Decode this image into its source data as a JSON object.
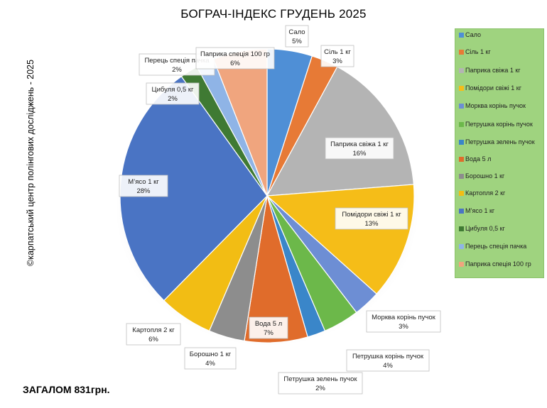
{
  "header": {
    "title": "БОГРАЧ-ІНДЕКС ГРУДЕНЬ 2025",
    "credit": "©карпатський центр полінгових досліджень - 2025",
    "total": "ЗАГАЛОМ 831грн."
  },
  "chart_data": {
    "type": "pie",
    "title": "БОГРАЧ-ІНДЕКС ГРУДЕНЬ 2025",
    "legend_position": "right",
    "slices": [
      {
        "name": "Сало",
        "value": 5,
        "label": "5%",
        "color": "#4f8fd6"
      },
      {
        "name": "Сіль 1 кг",
        "value": 3,
        "label": "3%",
        "color": "#e77a36"
      },
      {
        "name": "Паприка свіжа 1 кг",
        "value": 16,
        "label": "16%",
        "color": "#b4b4b4"
      },
      {
        "name": "Помідори свіжі 1 кг",
        "value": 13,
        "label": "13%",
        "color": "#f5bd18"
      },
      {
        "name": "Морква корінь пучок",
        "value": 3,
        "label": "3%",
        "color": "#6d8ed4"
      },
      {
        "name": "Петрушка корінь пучок",
        "value": 4,
        "label": "4%",
        "color": "#6cb84a"
      },
      {
        "name": "Петрушка зелень пучок",
        "value": 2,
        "label": "2%",
        "color": "#3a86c9"
      },
      {
        "name": "Вода 5 л",
        "value": 7,
        "label": "7%",
        "color": "#e06c2b"
      },
      {
        "name": "Борошно 1 кг",
        "value": 4,
        "label": "4%",
        "color": "#8d8d8d"
      },
      {
        "name": "Картопля 2 кг",
        "value": 6,
        "label": "6%",
        "color": "#f2bd14"
      },
      {
        "name": "М’ясо 1 кг",
        "value": 28,
        "label": "28%",
        "color": "#4a74c4"
      },
      {
        "name": "Цибуля 0,5 кг",
        "value": 2,
        "label": "2%",
        "color": "#3f7a33"
      },
      {
        "name": "Перець спеція пачка",
        "value": 2,
        "label": "2%",
        "color": "#8fb4e6"
      },
      {
        "name": "Паприка спеція 100 гр",
        "value": 6,
        "label": "6%",
        "color": "#f0a57e"
      }
    ]
  },
  "legend": {
    "items": [
      "Сало",
      "Сіль 1 кг",
      "Паприка свіжа 1 кг",
      "Помідори свіжі 1 кг",
      "Морква корінь пучок",
      "Петрушка корінь пучок",
      "Петрушка зелень пучок",
      "Вода 5 л",
      "Борошно 1 кг",
      "Картопля 2 кг",
      "М’ясо 1 кг",
      "Цибуля 0,5 кг",
      "Перець спеція пачка",
      "Паприка спеція 100 гр"
    ]
  }
}
